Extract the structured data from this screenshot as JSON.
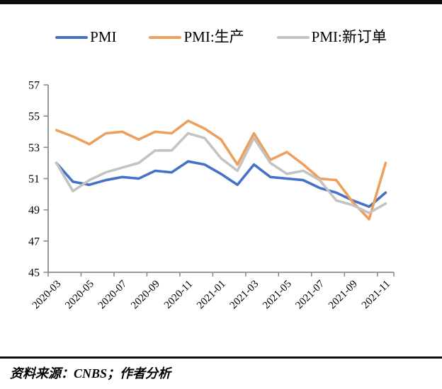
{
  "legend": {
    "items_note": "labels bound from chart_data.series names"
  },
  "footer": {
    "source_text": "资料来源：CNBS；作者分析"
  },
  "chart_data": {
    "type": "line",
    "title": "",
    "xlabel": "",
    "ylabel": "",
    "ylim": [
      45,
      57
    ],
    "yticks": [
      57,
      55,
      53,
      51,
      49,
      47,
      45
    ],
    "grid": false,
    "legend_position": "top",
    "axis_color": "#8c8c8c",
    "categories": [
      "2020-03",
      "2020-04",
      "2020-05",
      "2020-06",
      "2020-07",
      "2020-08",
      "2020-09",
      "2020-10",
      "2020-11",
      "2020-12",
      "2021-01",
      "2021-02",
      "2021-03",
      "2021-04",
      "2021-05",
      "2021-06",
      "2021-07",
      "2021-08",
      "2021-09",
      "2021-10",
      "2021-11"
    ],
    "x_tick_labels": [
      "2020-03",
      "2020-05",
      "2020-07",
      "2020-09",
      "2020-11",
      "2021-01",
      "2021-03",
      "2021-05",
      "2021-07",
      "2021-09",
      "2021-11"
    ],
    "series": [
      {
        "name": "PMI",
        "color": "#4472c4",
        "values": [
          52.0,
          50.8,
          50.6,
          50.9,
          51.1,
          51.0,
          51.5,
          51.4,
          52.1,
          51.9,
          51.3,
          50.6,
          51.9,
          51.1,
          51.0,
          50.9,
          50.4,
          50.1,
          49.6,
          49.2,
          50.1
        ]
      },
      {
        "name": "PMI:生产",
        "color": "#eda05c",
        "values": [
          54.1,
          53.7,
          53.2,
          53.9,
          54.0,
          53.5,
          54.0,
          53.9,
          54.7,
          54.2,
          53.5,
          51.9,
          53.9,
          52.2,
          52.7,
          51.9,
          51.0,
          50.9,
          49.5,
          48.4,
          52.0
        ]
      },
      {
        "name": "PMI:新订单",
        "color": "#c3c3c3",
        "values": [
          52.0,
          50.2,
          50.9,
          51.4,
          51.7,
          52.0,
          52.8,
          52.8,
          53.9,
          53.6,
          52.3,
          51.5,
          53.6,
          52.0,
          51.3,
          51.5,
          50.9,
          49.6,
          49.3,
          48.8,
          49.4
        ]
      }
    ]
  }
}
